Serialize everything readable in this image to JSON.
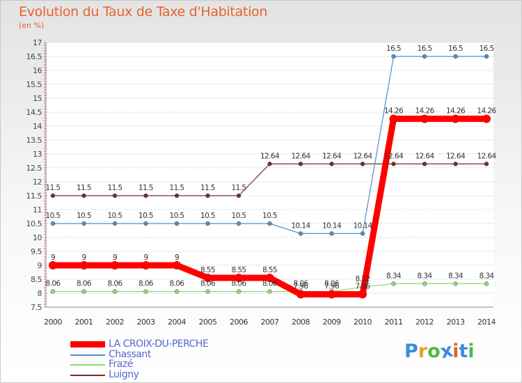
{
  "title": "Evolution du Taux de Taxe d'Habitation",
  "subtitle": "(en %)",
  "brand": [
    "P",
    "r",
    "o",
    "x",
    "i",
    "t",
    "i"
  ],
  "brand_colors": [
    "#3a8fd6",
    "#e8a020",
    "#4db848",
    "#3a8fd6",
    "#e8622a",
    "#3a8fd6",
    "#4db848"
  ],
  "chart_data": {
    "type": "line",
    "title": "Evolution du Taux de Taxe d'Habitation",
    "ylabel": "(en %)",
    "xlabel": "",
    "ylim": [
      7.5,
      17
    ],
    "yticks": [
      "7.5",
      "8",
      "8.5",
      "9",
      "9.5",
      "10",
      "10.5",
      "11",
      "11.5",
      "12",
      "12.5",
      "13",
      "13.5",
      "14",
      "14.5",
      "15",
      "15.5",
      "16",
      "16.5",
      "17"
    ],
    "grid": true,
    "categories": [
      "2000",
      "2001",
      "2002",
      "2003",
      "2004",
      "2005",
      "2006",
      "2007",
      "2008",
      "2009",
      "2010",
      "2011",
      "2012",
      "2013",
      "2014"
    ],
    "series": [
      {
        "name": "Luigny",
        "color": "#7a2a2a",
        "values": [
          11.5,
          11.5,
          11.5,
          11.5,
          11.5,
          11.5,
          11.5,
          12.64,
          12.64,
          12.64,
          12.64,
          12.64,
          12.64,
          12.64,
          12.64
        ],
        "labels": [
          "11.5",
          "11.5",
          "11.5",
          "11.5",
          "11.5",
          "11.5",
          "11.5",
          "12.64",
          "12.64",
          "12.64",
          "12.64",
          "12.64",
          "12.64",
          "12.64",
          "12.64"
        ]
      },
      {
        "name": "Chassant",
        "color": "#4a8fcf",
        "values": [
          10.5,
          10.5,
          10.5,
          10.5,
          10.5,
          10.5,
          10.5,
          10.5,
          10.14,
          10.14,
          10.14,
          16.5,
          16.5,
          16.5,
          16.5
        ],
        "labels": [
          "10.5",
          "10.5",
          "10.5",
          "10.5",
          "10.5",
          "10.5",
          "10.5",
          "10.5",
          "10.14",
          "10.14",
          "10.14",
          "16.5",
          "16.5",
          "16.5",
          "16.5"
        ]
      },
      {
        "name": "Frazé",
        "color": "#8fd86a",
        "values": [
          8.06,
          8.06,
          8.06,
          8.06,
          8.06,
          8.06,
          8.06,
          8.06,
          8.06,
          8.06,
          8.22,
          8.34,
          8.34,
          8.34,
          8.34
        ],
        "labels": [
          "8.06",
          "8.06",
          "8.06",
          "8.06",
          "8.06",
          "8.06",
          "8.06",
          "8.06",
          "8.06",
          "8.06",
          "8.22",
          "8.34",
          "8.34",
          "8.34",
          "8.34"
        ]
      },
      {
        "name": "LA CROIX-DU-PERCHE",
        "color": "#ff0000",
        "values": [
          9,
          9,
          9,
          9,
          9,
          8.55,
          8.55,
          8.55,
          7.96,
          7.96,
          7.96,
          14.26,
          14.26,
          14.26,
          14.26
        ],
        "labels": [
          "9",
          "9",
          "9",
          "9",
          "9",
          "8.55",
          "8.55",
          "8.55",
          "7.96",
          "7.96",
          "7.96",
          "14.26",
          "14.26",
          "14.26",
          "14.26"
        ]
      }
    ]
  },
  "legend": [
    {
      "name": "LA CROIX-DU-PERCHE",
      "color": "#ff0000",
      "thick": true
    },
    {
      "name": "Chassant",
      "color": "#4a8fcf",
      "thick": false
    },
    {
      "name": "Frazé",
      "color": "#8fd86a",
      "thick": false
    },
    {
      "name": "Luigny",
      "color": "#7a2a2a",
      "thick": false
    }
  ]
}
